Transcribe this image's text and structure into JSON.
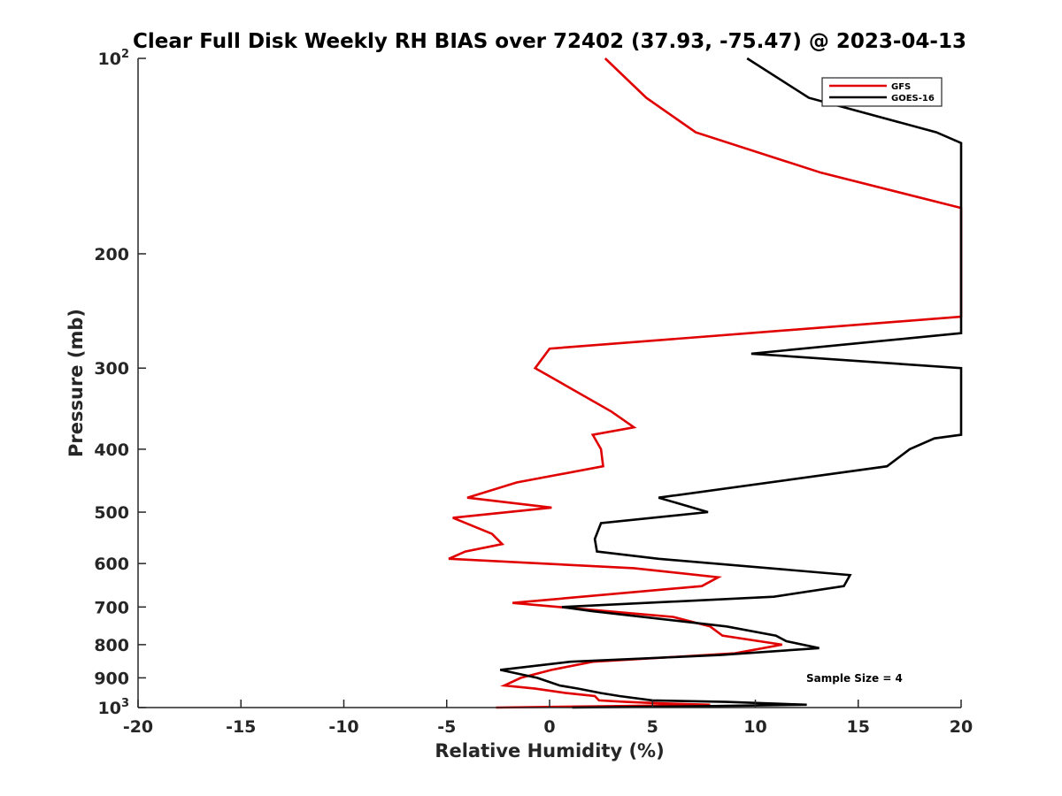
{
  "chart_data": {
    "type": "line",
    "title": "Clear Full Disk Weekly RH BIAS over 72402 (37.93, -75.47) @ 2023-04-13",
    "xlabel": "Relative Humidity (%)",
    "ylabel": "Pressure (mb)",
    "xlim": [
      -20,
      20
    ],
    "ylim": [
      100,
      1000
    ],
    "yscale": "log",
    "yreversed": true,
    "x_ticks": [
      "-20",
      "-15",
      "-10",
      "-5",
      "0",
      "5",
      "10",
      "15",
      "20"
    ],
    "y_ticks": [
      {
        "value": 100,
        "base": "10",
        "exp": "2"
      },
      {
        "value": 200,
        "label": "200"
      },
      {
        "value": 300,
        "label": "300"
      },
      {
        "value": 400,
        "label": "400"
      },
      {
        "value": 500,
        "label": "500"
      },
      {
        "value": 600,
        "label": "600"
      },
      {
        "value": 700,
        "label": "700"
      },
      {
        "value": 800,
        "label": "800"
      },
      {
        "value": 900,
        "label": "900"
      },
      {
        "value": 1000,
        "base": "10",
        "exp": "3"
      }
    ],
    "grid": false,
    "legend_position": "top-right",
    "annotation": "Sample Size = 4",
    "series": [
      {
        "name": "GFS",
        "color": "#e00000",
        "points": [
          [
            2.7,
            100
          ],
          [
            4.7,
            115
          ],
          [
            7.1,
            130
          ],
          [
            13.2,
            150
          ],
          [
            20,
            170
          ],
          [
            20,
            250
          ],
          [
            0,
            280
          ],
          [
            -0.7,
            300
          ],
          [
            3.0,
            350
          ],
          [
            4.1,
            370
          ],
          [
            2.1,
            380
          ],
          [
            2.5,
            400
          ],
          [
            2.6,
            425
          ],
          [
            -1.6,
            450
          ],
          [
            -4.0,
            475
          ],
          [
            0.1,
            492
          ],
          [
            -4.7,
            510
          ],
          [
            -2.8,
            540
          ],
          [
            -2.3,
            560
          ],
          [
            -4.1,
            575
          ],
          [
            -4.9,
            590
          ],
          [
            4.1,
            610
          ],
          [
            8.2,
            630
          ],
          [
            7.4,
            650
          ],
          [
            -1.8,
            690
          ],
          [
            4.9,
            720
          ],
          [
            6.0,
            725
          ],
          [
            7.8,
            750
          ],
          [
            8.4,
            775
          ],
          [
            11.3,
            800
          ],
          [
            9.0,
            825
          ],
          [
            2.1,
            850
          ],
          [
            0.1,
            875
          ],
          [
            -1.4,
            900
          ],
          [
            -2.2,
            925
          ],
          [
            -0.7,
            935
          ],
          [
            0.8,
            950
          ],
          [
            2.2,
            960
          ],
          [
            2.4,
            975
          ],
          [
            3.7,
            980
          ],
          [
            5.4,
            985
          ],
          [
            7.8,
            990
          ],
          [
            3.0,
            995
          ],
          [
            -2.6,
            1000
          ]
        ]
      },
      {
        "name": "GOES-16",
        "color": "#000000",
        "points": [
          [
            9.6,
            100
          ],
          [
            12.6,
            115
          ],
          [
            18.8,
            130
          ],
          [
            20,
            135
          ],
          [
            20,
            265
          ],
          [
            9.8,
            285
          ],
          [
            20,
            300
          ],
          [
            20,
            380
          ],
          [
            18.7,
            385
          ],
          [
            17.5,
            400
          ],
          [
            16.4,
            425
          ],
          [
            5.3,
            475
          ],
          [
            7.7,
            500
          ],
          [
            2.5,
            520
          ],
          [
            2.2,
            550
          ],
          [
            2.3,
            575
          ],
          [
            5.3,
            590
          ],
          [
            14.6,
            625
          ],
          [
            14.3,
            650
          ],
          [
            10.9,
            675
          ],
          [
            0.6,
            700
          ],
          [
            2.0,
            710
          ],
          [
            8.6,
            750
          ],
          [
            11.0,
            775
          ],
          [
            11.5,
            790
          ],
          [
            13.1,
            810
          ],
          [
            8.3,
            830
          ],
          [
            1.0,
            850
          ],
          [
            -2.4,
            875
          ],
          [
            -0.6,
            900
          ],
          [
            0.5,
            925
          ],
          [
            1.4,
            935
          ],
          [
            2.5,
            950
          ],
          [
            3.4,
            960
          ],
          [
            5.0,
            975
          ],
          [
            8.6,
            980
          ],
          [
            12.5,
            990
          ],
          [
            7.5,
            995
          ],
          [
            1.1,
            1000
          ]
        ]
      }
    ]
  }
}
